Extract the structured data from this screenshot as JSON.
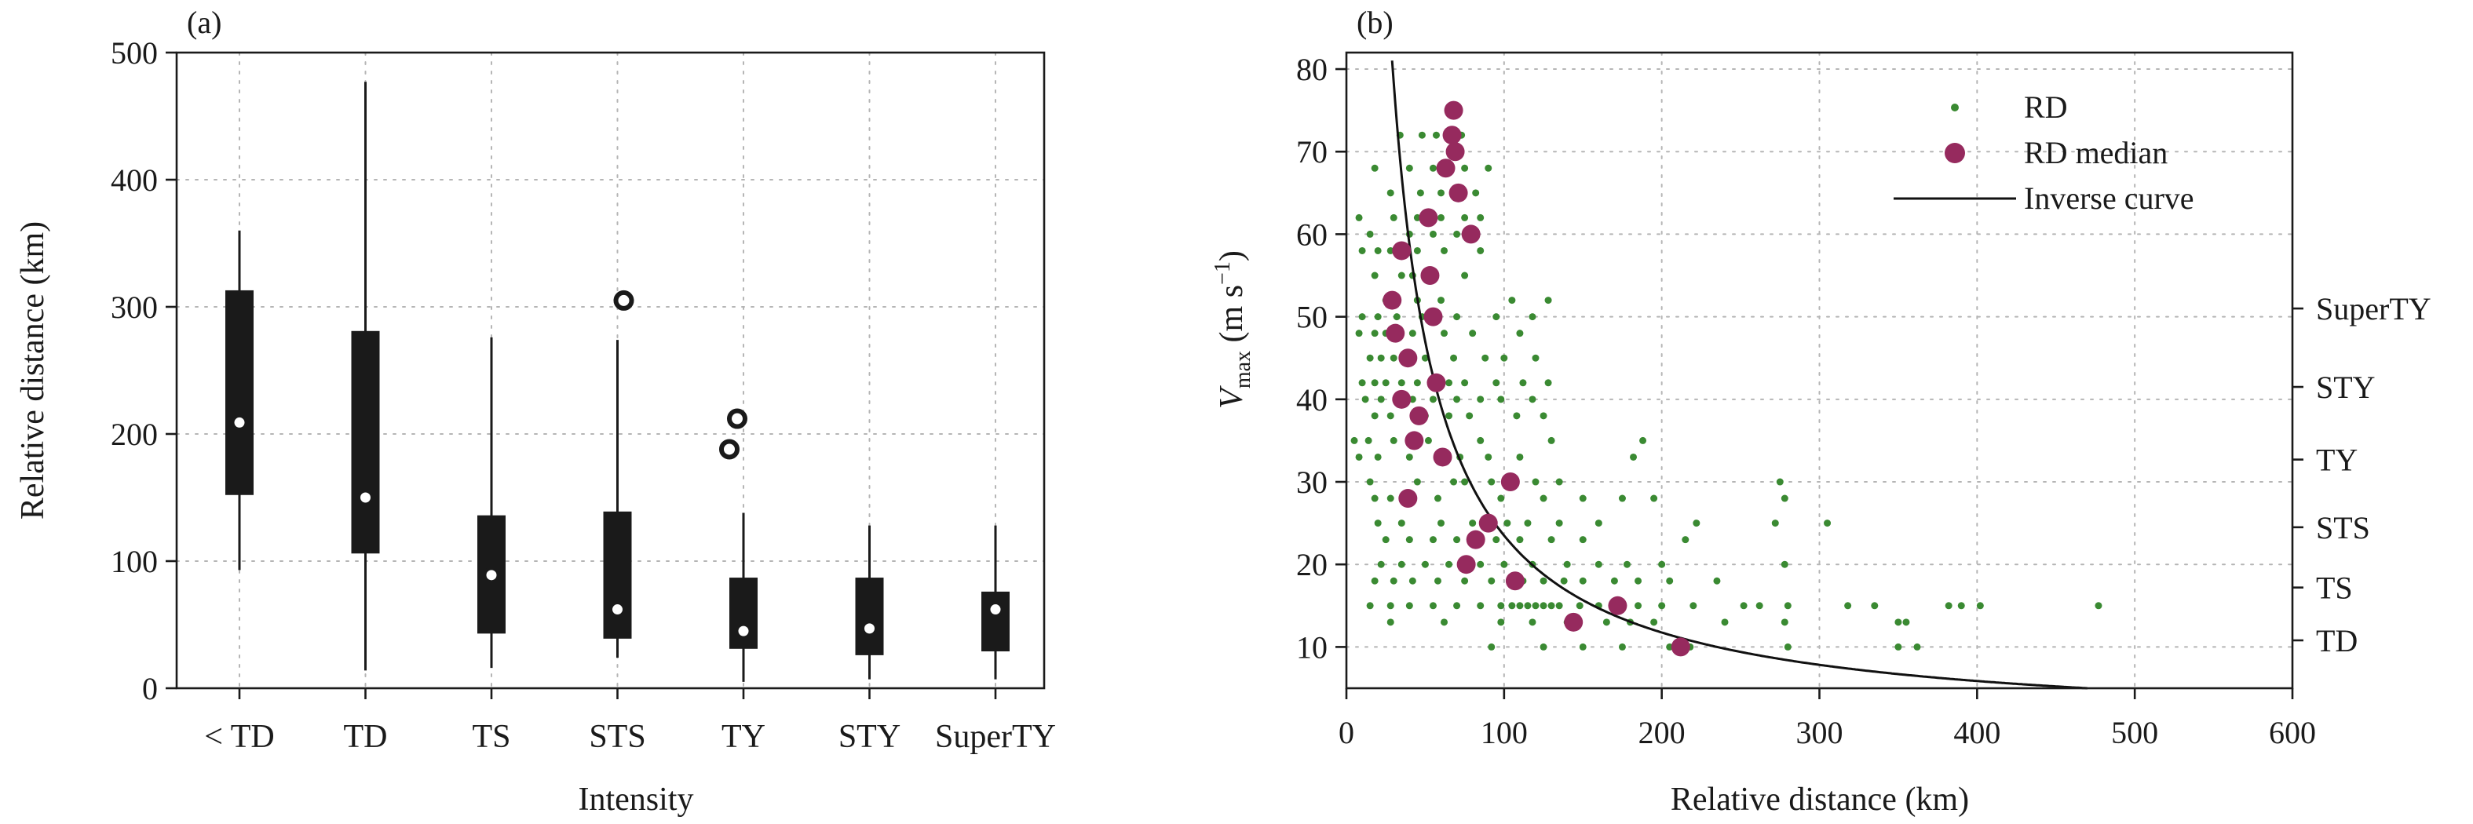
{
  "chart_data": [
    {
      "type": "box",
      "panel_label": "(a)",
      "xlabel": "Intensity",
      "ylabel": "Relative distance (km)",
      "ylim": [
        0,
        500
      ],
      "yticks": [
        0,
        100,
        200,
        300,
        400,
        500
      ],
      "grid": true,
      "categories": [
        "< TD",
        "TD",
        "TS",
        "STS",
        "TY",
        "STY",
        "SuperTY"
      ],
      "boxes": [
        {
          "category": "< TD",
          "whisker_low": 93,
          "q1": 152,
          "median": 209,
          "q3": 313,
          "whisker_high": 360,
          "outliers": []
        },
        {
          "category": "TD",
          "whisker_low": 14,
          "q1": 106,
          "median": 150,
          "q3": 281,
          "whisker_high": 477,
          "outliers": []
        },
        {
          "category": "TS",
          "whisker_low": 16,
          "q1": 43,
          "median": 89,
          "q3": 136,
          "whisker_high": 276,
          "outliers": []
        },
        {
          "category": "STS",
          "whisker_low": 24,
          "q1": 39,
          "median": 62,
          "q3": 139,
          "whisker_high": 274,
          "outliers": [
            305
          ]
        },
        {
          "category": "TY",
          "whisker_low": 5,
          "q1": 31,
          "median": 45,
          "q3": 87,
          "whisker_high": 138,
          "outliers": [
            188,
            212
          ]
        },
        {
          "category": "STY",
          "whisker_low": 7,
          "q1": 26,
          "median": 47,
          "q3": 87,
          "whisker_high": 128,
          "outliers": []
        },
        {
          "category": "SuperTY",
          "whisker_low": 7,
          "q1": 29,
          "median": 62,
          "q3": 76,
          "whisker_high": 128,
          "outliers": []
        }
      ]
    },
    {
      "type": "scatter",
      "panel_label": "(b)",
      "xlabel": "Relative distance (km)",
      "ylabel_main": "V",
      "ylabel_sub": "max",
      "ylabel_unit": " (m s",
      "ylabel_exp": "−1",
      "ylabel_close": ")",
      "xlim": [
        0,
        600
      ],
      "ylim": [
        5,
        82
      ],
      "xticks": [
        0,
        100,
        200,
        300,
        400,
        500,
        600
      ],
      "yticks": [
        10,
        20,
        30,
        40,
        50,
        60,
        70,
        80
      ],
      "grid": true,
      "colors": {
        "rd": "#3a8a32",
        "median": "#962a5e",
        "curve": "#111111"
      },
      "legend": {
        "placement": "top-right",
        "entries": [
          "RD",
          "RD median",
          "Inverse curve"
        ]
      },
      "right_axis": [
        {
          "label": "TD",
          "value": 10.8
        },
        {
          "label": "TS",
          "value": 17.2
        },
        {
          "label": "STS",
          "value": 24.5
        },
        {
          "label": "TY",
          "value": 32.7
        },
        {
          "label": "STY",
          "value": 41.5
        },
        {
          "label": "SuperTY",
          "value": 51.0
        }
      ],
      "inverse_curve": {
        "formula": "V = 2350 / RD",
        "k": 2350,
        "x_range": [
          28,
          470
        ]
      },
      "rd_median": [
        {
          "x": 68,
          "y": 75
        },
        {
          "x": 67,
          "y": 72
        },
        {
          "x": 69,
          "y": 70
        },
        {
          "x": 63,
          "y": 68
        },
        {
          "x": 71,
          "y": 65
        },
        {
          "x": 52,
          "y": 62
        },
        {
          "x": 79,
          "y": 60
        },
        {
          "x": 35,
          "y": 58
        },
        {
          "x": 53,
          "y": 55
        },
        {
          "x": 29,
          "y": 52
        },
        {
          "x": 55,
          "y": 50
        },
        {
          "x": 31,
          "y": 48
        },
        {
          "x": 39,
          "y": 45
        },
        {
          "x": 57,
          "y": 42
        },
        {
          "x": 35,
          "y": 40
        },
        {
          "x": 46,
          "y": 38
        },
        {
          "x": 43,
          "y": 35
        },
        {
          "x": 61,
          "y": 33
        },
        {
          "x": 104,
          "y": 30
        },
        {
          "x": 39,
          "y": 28
        },
        {
          "x": 90,
          "y": 25
        },
        {
          "x": 82,
          "y": 23
        },
        {
          "x": 76,
          "y": 20
        },
        {
          "x": 107,
          "y": 18
        },
        {
          "x": 172,
          "y": 15
        },
        {
          "x": 144,
          "y": 13
        },
        {
          "x": 212,
          "y": 10
        }
      ],
      "rd_points": [
        {
          "x": 34,
          "y": 72
        },
        {
          "x": 48,
          "y": 72
        },
        {
          "x": 57,
          "y": 72
        },
        {
          "x": 73,
          "y": 72
        },
        {
          "x": 18,
          "y": 68
        },
        {
          "x": 40,
          "y": 68
        },
        {
          "x": 55,
          "y": 68
        },
        {
          "x": 75,
          "y": 68
        },
        {
          "x": 90,
          "y": 68
        },
        {
          "x": 28,
          "y": 65
        },
        {
          "x": 47,
          "y": 65
        },
        {
          "x": 60,
          "y": 65
        },
        {
          "x": 82,
          "y": 65
        },
        {
          "x": 8,
          "y": 62
        },
        {
          "x": 30,
          "y": 62
        },
        {
          "x": 45,
          "y": 62
        },
        {
          "x": 60,
          "y": 62
        },
        {
          "x": 75,
          "y": 62
        },
        {
          "x": 85,
          "y": 62
        },
        {
          "x": 15,
          "y": 60
        },
        {
          "x": 40,
          "y": 60
        },
        {
          "x": 55,
          "y": 60
        },
        {
          "x": 70,
          "y": 60
        },
        {
          "x": 10,
          "y": 58
        },
        {
          "x": 20,
          "y": 58
        },
        {
          "x": 28,
          "y": 58
        },
        {
          "x": 45,
          "y": 58
        },
        {
          "x": 62,
          "y": 58
        },
        {
          "x": 85,
          "y": 58
        },
        {
          "x": 18,
          "y": 55
        },
        {
          "x": 35,
          "y": 55
        },
        {
          "x": 42,
          "y": 55
        },
        {
          "x": 75,
          "y": 55
        },
        {
          "x": 25,
          "y": 52
        },
        {
          "x": 45,
          "y": 52
        },
        {
          "x": 60,
          "y": 52
        },
        {
          "x": 105,
          "y": 52
        },
        {
          "x": 128,
          "y": 52
        },
        {
          "x": 10,
          "y": 50
        },
        {
          "x": 20,
          "y": 50
        },
        {
          "x": 32,
          "y": 50
        },
        {
          "x": 48,
          "y": 50
        },
        {
          "x": 70,
          "y": 50
        },
        {
          "x": 95,
          "y": 50
        },
        {
          "x": 118,
          "y": 50
        },
        {
          "x": 8,
          "y": 48
        },
        {
          "x": 18,
          "y": 48
        },
        {
          "x": 25,
          "y": 48
        },
        {
          "x": 42,
          "y": 48
        },
        {
          "x": 62,
          "y": 48
        },
        {
          "x": 80,
          "y": 48
        },
        {
          "x": 110,
          "y": 48
        },
        {
          "x": 15,
          "y": 45
        },
        {
          "x": 22,
          "y": 45
        },
        {
          "x": 30,
          "y": 45
        },
        {
          "x": 50,
          "y": 45
        },
        {
          "x": 68,
          "y": 45
        },
        {
          "x": 88,
          "y": 45
        },
        {
          "x": 100,
          "y": 45
        },
        {
          "x": 120,
          "y": 45
        },
        {
          "x": 10,
          "y": 42
        },
        {
          "x": 18,
          "y": 42
        },
        {
          "x": 25,
          "y": 42
        },
        {
          "x": 35,
          "y": 42
        },
        {
          "x": 45,
          "y": 42
        },
        {
          "x": 65,
          "y": 42
        },
        {
          "x": 75,
          "y": 42
        },
        {
          "x": 95,
          "y": 42
        },
        {
          "x": 112,
          "y": 42
        },
        {
          "x": 128,
          "y": 42
        },
        {
          "x": 12,
          "y": 40
        },
        {
          "x": 22,
          "y": 40
        },
        {
          "x": 42,
          "y": 40
        },
        {
          "x": 55,
          "y": 40
        },
        {
          "x": 70,
          "y": 40
        },
        {
          "x": 85,
          "y": 40
        },
        {
          "x": 98,
          "y": 40
        },
        {
          "x": 118,
          "y": 40
        },
        {
          "x": 18,
          "y": 38
        },
        {
          "x": 28,
          "y": 38
        },
        {
          "x": 50,
          "y": 38
        },
        {
          "x": 65,
          "y": 38
        },
        {
          "x": 78,
          "y": 38
        },
        {
          "x": 108,
          "y": 38
        },
        {
          "x": 125,
          "y": 38
        },
        {
          "x": 5,
          "y": 35
        },
        {
          "x": 14,
          "y": 35
        },
        {
          "x": 30,
          "y": 35
        },
        {
          "x": 52,
          "y": 35
        },
        {
          "x": 85,
          "y": 35
        },
        {
          "x": 130,
          "y": 35
        },
        {
          "x": 188,
          "y": 35
        },
        {
          "x": 8,
          "y": 33
        },
        {
          "x": 20,
          "y": 33
        },
        {
          "x": 40,
          "y": 33
        },
        {
          "x": 72,
          "y": 33
        },
        {
          "x": 90,
          "y": 33
        },
        {
          "x": 110,
          "y": 33
        },
        {
          "x": 182,
          "y": 33
        },
        {
          "x": 15,
          "y": 30
        },
        {
          "x": 45,
          "y": 30
        },
        {
          "x": 68,
          "y": 30
        },
        {
          "x": 75,
          "y": 30
        },
        {
          "x": 92,
          "y": 30
        },
        {
          "x": 120,
          "y": 30
        },
        {
          "x": 135,
          "y": 30
        },
        {
          "x": 275,
          "y": 30
        },
        {
          "x": 18,
          "y": 28
        },
        {
          "x": 28,
          "y": 28
        },
        {
          "x": 58,
          "y": 28
        },
        {
          "x": 98,
          "y": 28
        },
        {
          "x": 125,
          "y": 28
        },
        {
          "x": 150,
          "y": 28
        },
        {
          "x": 175,
          "y": 28
        },
        {
          "x": 195,
          "y": 28
        },
        {
          "x": 278,
          "y": 28
        },
        {
          "x": 20,
          "y": 25
        },
        {
          "x": 35,
          "y": 25
        },
        {
          "x": 60,
          "y": 25
        },
        {
          "x": 80,
          "y": 25
        },
        {
          "x": 102,
          "y": 25
        },
        {
          "x": 115,
          "y": 25
        },
        {
          "x": 135,
          "y": 25
        },
        {
          "x": 160,
          "y": 25
        },
        {
          "x": 222,
          "y": 25
        },
        {
          "x": 272,
          "y": 25
        },
        {
          "x": 305,
          "y": 25
        },
        {
          "x": 25,
          "y": 23
        },
        {
          "x": 40,
          "y": 23
        },
        {
          "x": 55,
          "y": 23
        },
        {
          "x": 70,
          "y": 23
        },
        {
          "x": 95,
          "y": 23
        },
        {
          "x": 110,
          "y": 23
        },
        {
          "x": 130,
          "y": 23
        },
        {
          "x": 150,
          "y": 23
        },
        {
          "x": 215,
          "y": 23
        },
        {
          "x": 22,
          "y": 20
        },
        {
          "x": 35,
          "y": 20
        },
        {
          "x": 50,
          "y": 20
        },
        {
          "x": 65,
          "y": 20
        },
        {
          "x": 85,
          "y": 20
        },
        {
          "x": 100,
          "y": 20
        },
        {
          "x": 118,
          "y": 20
        },
        {
          "x": 140,
          "y": 20
        },
        {
          "x": 160,
          "y": 20
        },
        {
          "x": 178,
          "y": 20
        },
        {
          "x": 200,
          "y": 20
        },
        {
          "x": 278,
          "y": 20
        },
        {
          "x": 18,
          "y": 18
        },
        {
          "x": 30,
          "y": 18
        },
        {
          "x": 42,
          "y": 18
        },
        {
          "x": 58,
          "y": 18
        },
        {
          "x": 75,
          "y": 18
        },
        {
          "x": 92,
          "y": 18
        },
        {
          "x": 112,
          "y": 18
        },
        {
          "x": 125,
          "y": 18
        },
        {
          "x": 138,
          "y": 18
        },
        {
          "x": 150,
          "y": 18
        },
        {
          "x": 170,
          "y": 18
        },
        {
          "x": 185,
          "y": 18
        },
        {
          "x": 205,
          "y": 18
        },
        {
          "x": 235,
          "y": 18
        },
        {
          "x": 15,
          "y": 15
        },
        {
          "x": 28,
          "y": 15
        },
        {
          "x": 40,
          "y": 15
        },
        {
          "x": 55,
          "y": 15
        },
        {
          "x": 70,
          "y": 15
        },
        {
          "x": 85,
          "y": 15
        },
        {
          "x": 98,
          "y": 15
        },
        {
          "x": 105,
          "y": 15
        },
        {
          "x": 110,
          "y": 15
        },
        {
          "x": 115,
          "y": 15
        },
        {
          "x": 120,
          "y": 15
        },
        {
          "x": 125,
          "y": 15
        },
        {
          "x": 130,
          "y": 15
        },
        {
          "x": 135,
          "y": 15
        },
        {
          "x": 148,
          "y": 15
        },
        {
          "x": 160,
          "y": 15
        },
        {
          "x": 185,
          "y": 15
        },
        {
          "x": 200,
          "y": 15
        },
        {
          "x": 220,
          "y": 15
        },
        {
          "x": 252,
          "y": 15
        },
        {
          "x": 262,
          "y": 15
        },
        {
          "x": 280,
          "y": 15
        },
        {
          "x": 318,
          "y": 15
        },
        {
          "x": 335,
          "y": 15
        },
        {
          "x": 382,
          "y": 15
        },
        {
          "x": 390,
          "y": 15
        },
        {
          "x": 402,
          "y": 15
        },
        {
          "x": 477,
          "y": 15
        },
        {
          "x": 28,
          "y": 13
        },
        {
          "x": 62,
          "y": 13
        },
        {
          "x": 98,
          "y": 13
        },
        {
          "x": 118,
          "y": 13
        },
        {
          "x": 140,
          "y": 13
        },
        {
          "x": 165,
          "y": 13
        },
        {
          "x": 180,
          "y": 13
        },
        {
          "x": 195,
          "y": 13
        },
        {
          "x": 240,
          "y": 13
        },
        {
          "x": 278,
          "y": 13
        },
        {
          "x": 350,
          "y": 13
        },
        {
          "x": 355,
          "y": 13
        },
        {
          "x": 92,
          "y": 10
        },
        {
          "x": 125,
          "y": 10
        },
        {
          "x": 150,
          "y": 10
        },
        {
          "x": 175,
          "y": 10
        },
        {
          "x": 205,
          "y": 10
        },
        {
          "x": 218,
          "y": 10
        },
        {
          "x": 280,
          "y": 10
        },
        {
          "x": 350,
          "y": 10
        },
        {
          "x": 362,
          "y": 10
        }
      ]
    }
  ]
}
